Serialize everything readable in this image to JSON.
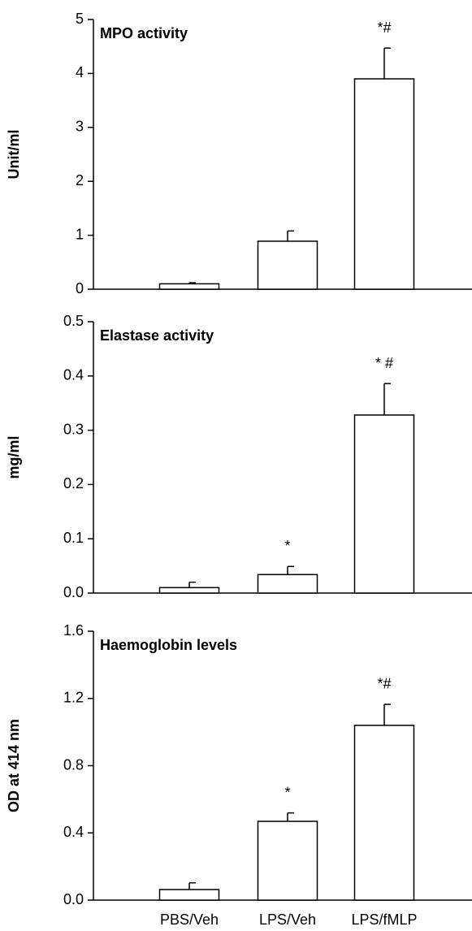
{
  "chart_data": [
    {
      "type": "bar",
      "title": "MPO activity",
      "y_label": "Unit/ml",
      "categories": [
        null,
        null,
        null
      ],
      "values": [
        0.1,
        0.89,
        3.9
      ],
      "errors": [
        0.02,
        0.19,
        0.57
      ],
      "annotations": [
        null,
        null,
        "*#"
      ],
      "color": "#ffffff",
      "ylim": [
        0,
        5
      ],
      "yticks": [
        0,
        1,
        2,
        3,
        4,
        5
      ]
    },
    {
      "type": "bar",
      "title": "Elastase activity",
      "y_label": "mg/ml",
      "categories": [
        null,
        null,
        null
      ],
      "values": [
        0.01,
        0.034,
        0.328
      ],
      "errors": [
        0.01,
        0.015,
        0.058
      ],
      "annotations": [
        null,
        "*",
        "* #"
      ],
      "color": "#ffffff",
      "ylim": [
        0,
        0.5
      ],
      "yticks": [
        {
          "value": 0,
          "label": "0.0"
        },
        0.1,
        0.2,
        0.3,
        0.4,
        0.5
      ]
    },
    {
      "type": "bar",
      "title": "Haemoglobin levels",
      "y_label": "OD at 414 nm",
      "categories": [
        "PBS/Veh",
        "LPS/Veh",
        "LPS/fMLP"
      ],
      "values": [
        0.063,
        0.469,
        1.04
      ],
      "errors": [
        0.04,
        0.05,
        0.125
      ],
      "annotations": [
        null,
        "*",
        "*#"
      ],
      "color": "#ffffff",
      "ylim": [
        0,
        1.6
      ],
      "yticks": [
        {
          "value": 0,
          "label": "0.0"
        },
        0.4,
        0.8,
        1.2,
        1.6
      ]
    }
  ]
}
